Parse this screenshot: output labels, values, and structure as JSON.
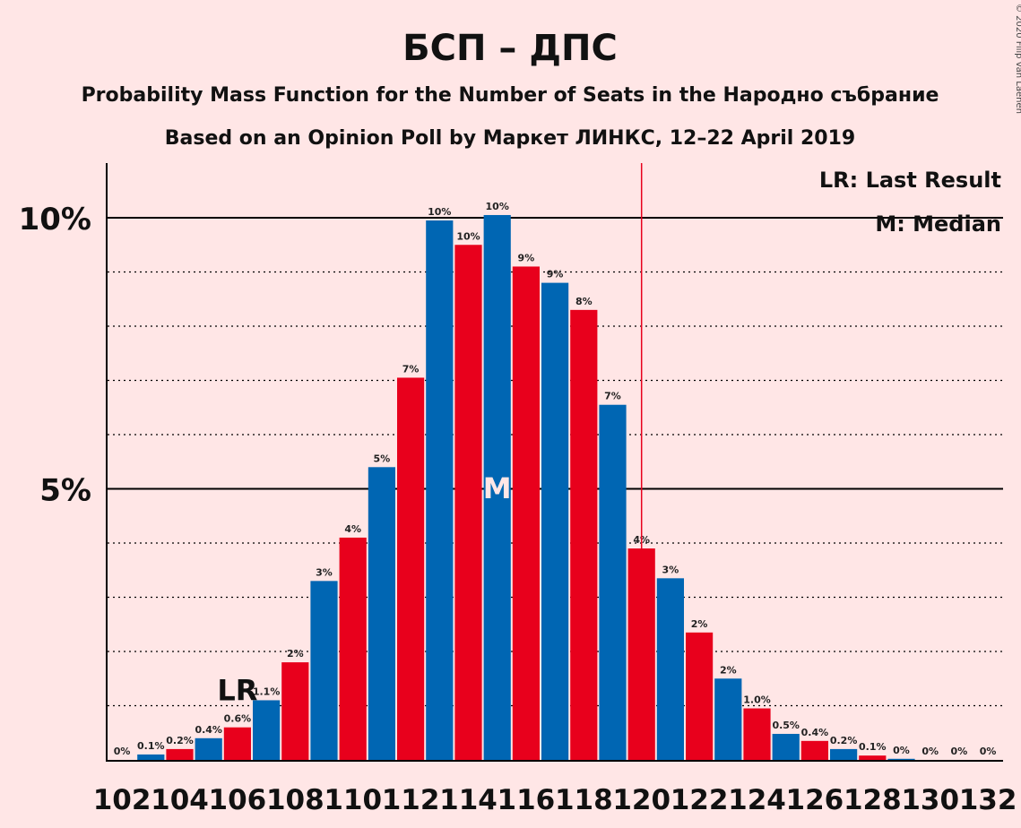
{
  "title": "БСП – ДПС",
  "subtitle1": "Probability Mass Function for the Number of Seats in the Народно събрание",
  "subtitle2": "Based on an Opinion Poll by Маркет ЛИНКС, 12–22 April 2019",
  "copyright": "© 2020 Filip van Laenen",
  "legend": {
    "lr": "LR: Last Result",
    "m": "M: Median"
  },
  "markers": {
    "lr_label": "LR",
    "median_label": "M"
  },
  "colors": {
    "blue": "#0066B3",
    "red": "#E8001C",
    "background": "#FFE6E6",
    "threshold": "#E8001C"
  },
  "chart_data": {
    "type": "bar",
    "x": [
      102,
      103,
      104,
      105,
      106,
      107,
      108,
      109,
      110,
      111,
      112,
      113,
      114,
      115,
      116,
      117,
      118,
      119,
      120,
      121,
      122,
      123,
      124,
      125,
      126,
      127,
      128,
      129,
      130,
      131,
      132
    ],
    "values": [
      0,
      0.1,
      0.2,
      0.4,
      0.6,
      1.1,
      1.8,
      3.3,
      4.1,
      5.4,
      7.05,
      9.95,
      9.5,
      10.05,
      9.1,
      8.8,
      8.3,
      6.55,
      3.9,
      3.35,
      2.35,
      1.5,
      0.95,
      0.48,
      0.35,
      0.2,
      0.08,
      0.02,
      0,
      0,
      0
    ],
    "value_labels": [
      "0%",
      "0.1%",
      "0.2%",
      "0.4%",
      "0.6%",
      "1.1%",
      "2%",
      "3%",
      "4%",
      "5%",
      "7%",
      "10%",
      "10%",
      "10%",
      "9%",
      "9%",
      "8%",
      "7%",
      "4%",
      "3%",
      "2%",
      "2%",
      "1.0%",
      "0.5%",
      "0.4%",
      "0.2%",
      "0.1%",
      "0%",
      "0%",
      "0%",
      "0%"
    ],
    "x_tick_labels": [
      "102",
      "104",
      "106",
      "108",
      "110",
      "112",
      "114",
      "116",
      "118",
      "120",
      "122",
      "124",
      "126",
      "128",
      "130",
      "132"
    ],
    "y_tick_labels": [
      "5%",
      "10%"
    ],
    "y_ticks": [
      5,
      10
    ],
    "ylim": [
      0,
      11
    ],
    "last_result": 106,
    "median": 115,
    "majority_threshold": 120.5,
    "grid": true,
    "legend_position": "top-right"
  }
}
